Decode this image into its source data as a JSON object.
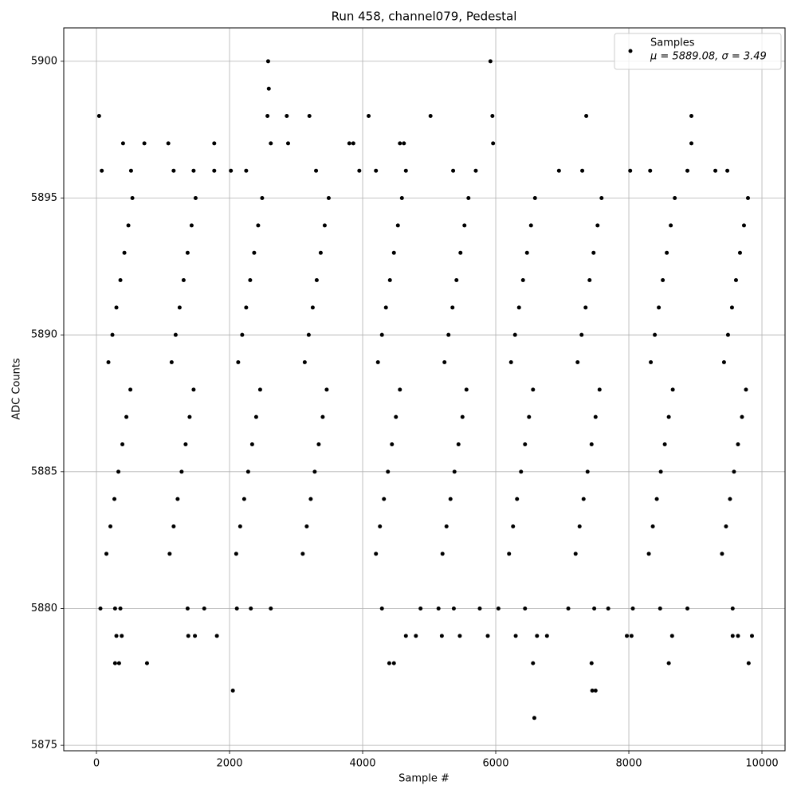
{
  "chart_data": {
    "type": "scatter",
    "title": "Run 458, channel079, Pedestal",
    "x_label": "Sample #",
    "y_label": "ADC Counts",
    "xlim": [
      -491,
      10347
    ],
    "ylim": [
      5874.8,
      5901.22
    ],
    "xticks": [
      0,
      2000,
      4000,
      6000,
      8000,
      10000
    ],
    "yticks": [
      5875,
      5880,
      5885,
      5890,
      5895,
      5900
    ],
    "grid": true,
    "legend": "upper right",
    "annotation": "μ = 5889.08, σ = 3.49",
    "series": [
      {
        "name": "Samples",
        "color": "#000000",
        "x": [
          40,
          400,
          720,
          1080,
          1770,
          2580,
          2590,
          2570,
          2620,
          2860,
          2880,
          3200,
          3800,
          3860,
          4090,
          4560,
          4620,
          5020,
          5920,
          5950,
          5960,
          7360,
          8940,
          8940,
          2050,
          6580,
          6560,
          7450,
          7500,
          7440,
          760,
          280,
          340,
          4400,
          4470,
          8600,
          9800,
          300,
          380,
          1380,
          1480,
          1810,
          4650,
          4800,
          5190,
          5460,
          5880,
          6300,
          6620,
          6770,
          7970,
          8040,
          8650,
          9560,
          9640,
          9850,
          60,
          280,
          360,
          1370,
          1620,
          2110,
          2320,
          2620,
          4290,
          4870,
          5140,
          5370,
          5760,
          6040,
          6440,
          7090,
          7480,
          7690,
          8060,
          8470,
          8880,
          9560,
          80,
          520,
          1160,
          1460,
          1770,
          2020,
          2250,
          3300,
          3950,
          4200,
          4650,
          5360,
          5700,
          6950,
          7300,
          8020,
          8320,
          8880,
          9300,
          9480,
          150,
          1100,
          2100,
          3100,
          4200,
          5200,
          6200,
          7200,
          8300,
          9400,
          210,
          1160,
          2160,
          3160,
          4260,
          5260,
          6260,
          7260,
          8360,
          9460,
          270,
          1220,
          2220,
          3220,
          4320,
          5320,
          6320,
          7320,
          8420,
          9520,
          330,
          1280,
          2280,
          3280,
          4380,
          5380,
          6380,
          7380,
          8480,
          9580,
          390,
          1340,
          2340,
          3340,
          4440,
          5440,
          6440,
          7440,
          8540,
          9640,
          450,
          1400,
          2400,
          3400,
          4500,
          5500,
          6500,
          7500,
          8600,
          9700,
          510,
          1460,
          2460,
          3460,
          4560,
          5560,
          6560,
          7560,
          8660,
          9760,
          180,
          1130,
          2130,
          3130,
          4230,
          5230,
          6230,
          7230,
          8330,
          9430,
          240,
          1190,
          2190,
          3190,
          4290,
          5290,
          6290,
          7290,
          8390,
          9490,
          300,
          1250,
          2250,
          3250,
          4350,
          5350,
          6350,
          7350,
          8450,
          9550,
          360,
          1310,
          2310,
          3310,
          4410,
          5410,
          6410,
          7410,
          8510,
          9610,
          420,
          1370,
          2370,
          3370,
          4470,
          5470,
          6470,
          7470,
          8570,
          9670,
          480,
          1430,
          2430,
          3430,
          4530,
          5530,
          6530,
          7530,
          8630,
          9730,
          540,
          1490,
          2490,
          3490,
          4590,
          5590,
          6590,
          7590,
          8690,
          9790
        ],
        "values": [
          5898,
          5897,
          5897,
          5897,
          5897,
          5900,
          5899,
          5898,
          5897,
          5898,
          5897,
          5898,
          5897,
          5897,
          5898,
          5897,
          5897,
          5898,
          5900,
          5898,
          5897,
          5898,
          5898,
          5897,
          5877,
          5876,
          5878,
          5877,
          5877,
          5878,
          5878,
          5878,
          5878,
          5878,
          5878,
          5878,
          5878,
          5879,
          5879,
          5879,
          5879,
          5879,
          5879,
          5879,
          5879,
          5879,
          5879,
          5879,
          5879,
          5879,
          5879,
          5879,
          5879,
          5879,
          5879,
          5879,
          5880,
          5880,
          5880,
          5880,
          5880,
          5880,
          5880,
          5880,
          5880,
          5880,
          5880,
          5880,
          5880,
          5880,
          5880,
          5880,
          5880,
          5880,
          5880,
          5880,
          5880,
          5880,
          5896,
          5896,
          5896,
          5896,
          5896,
          5896,
          5896,
          5896,
          5896,
          5896,
          5896,
          5896,
          5896,
          5896,
          5896,
          5896,
          5896,
          5896,
          5896,
          5896,
          5882,
          5882,
          5882,
          5882,
          5882,
          5882,
          5882,
          5882,
          5882,
          5882,
          5883,
          5883,
          5883,
          5883,
          5883,
          5883,
          5883,
          5883,
          5883,
          5883,
          5884,
          5884,
          5884,
          5884,
          5884,
          5884,
          5884,
          5884,
          5884,
          5884,
          5885,
          5885,
          5885,
          5885,
          5885,
          5885,
          5885,
          5885,
          5885,
          5885,
          5886,
          5886,
          5886,
          5886,
          5886,
          5886,
          5886,
          5886,
          5886,
          5886,
          5887,
          5887,
          5887,
          5887,
          5887,
          5887,
          5887,
          5887,
          5887,
          5887,
          5888,
          5888,
          5888,
          5888,
          5888,
          5888,
          5888,
          5888,
          5888,
          5888,
          5889,
          5889,
          5889,
          5889,
          5889,
          5889,
          5889,
          5889,
          5889,
          5889,
          5890,
          5890,
          5890,
          5890,
          5890,
          5890,
          5890,
          5890,
          5890,
          5890,
          5891,
          5891,
          5891,
          5891,
          5891,
          5891,
          5891,
          5891,
          5891,
          5891,
          5892,
          5892,
          5892,
          5892,
          5892,
          5892,
          5892,
          5892,
          5892,
          5892,
          5893,
          5893,
          5893,
          5893,
          5893,
          5893,
          5893,
          5893,
          5893,
          5893,
          5894,
          5894,
          5894,
          5894,
          5894,
          5894,
          5894,
          5894,
          5894,
          5894,
          5895,
          5895,
          5895,
          5895,
          5895,
          5895,
          5895,
          5895,
          5895,
          5895
        ]
      }
    ]
  }
}
